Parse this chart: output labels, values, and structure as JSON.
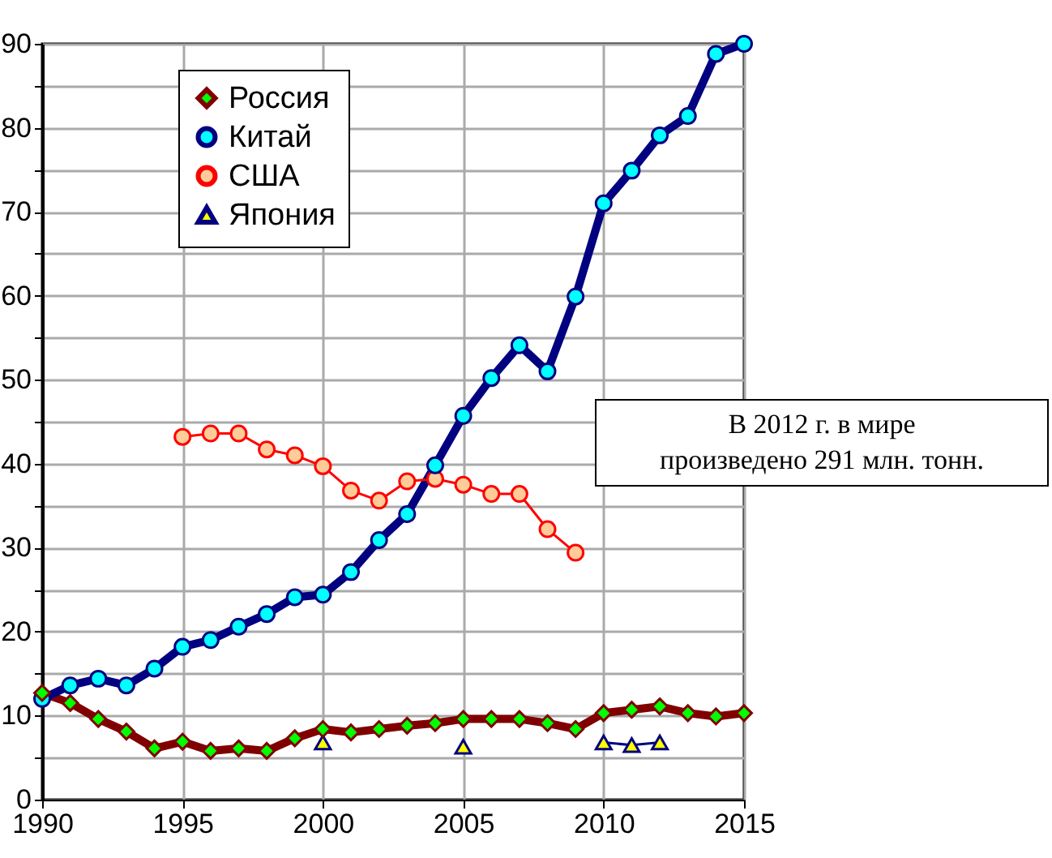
{
  "chart_data": {
    "type": "line",
    "x": [
      1990,
      1991,
      1992,
      1993,
      1994,
      1995,
      1996,
      1997,
      1998,
      1999,
      2000,
      2001,
      2002,
      2003,
      2004,
      2005,
      2006,
      2007,
      2008,
      2009,
      2010,
      2011,
      2012,
      2013,
      2014,
      2015
    ],
    "series": [
      {
        "name": "Россия",
        "color": "#800000",
        "marker": "diamond",
        "values": [
          12.7,
          11.5,
          9.6,
          8.1,
          6.1,
          6.9,
          5.8,
          6.1,
          5.8,
          7.3,
          8.4,
          8.0,
          8.4,
          8.8,
          9.1,
          9.6,
          9.6,
          9.6,
          9.1,
          8.4,
          10.3,
          10.7,
          11.1,
          10.3,
          9.9,
          10.3
        ]
      },
      {
        "name": "Китай",
        "color": "#000080",
        "marker": "circle",
        "values": [
          12.0,
          13.6,
          14.4,
          13.6,
          15.6,
          18.2,
          19.0,
          20.6,
          22.1,
          24.1,
          24.4,
          27.1,
          30.9,
          34.0,
          39.8,
          45.7,
          50.2,
          54.1,
          51.0,
          59.9,
          71.0,
          74.9,
          79.1,
          81.4,
          88.8,
          90.0
        ]
      },
      {
        "name": "США",
        "color": "#ff0000",
        "marker": "circle",
        "values": [
          null,
          null,
          null,
          null,
          null,
          43.2,
          43.6,
          43.6,
          41.7,
          41.0,
          39.7,
          36.8,
          35.6,
          37.9,
          38.2,
          37.5,
          36.4,
          36.4,
          32.2,
          29.4,
          null,
          null,
          null,
          null,
          null,
          null
        ]
      },
      {
        "name": "Япония",
        "color": "#000080",
        "marker": "triangle",
        "values": [
          null,
          null,
          null,
          null,
          null,
          null,
          null,
          null,
          null,
          null,
          6.8,
          null,
          null,
          null,
          null,
          6.3,
          null,
          null,
          null,
          null,
          6.8,
          6.5,
          6.8,
          null,
          null,
          null
        ]
      }
    ],
    "xlim": [
      1990,
      2015
    ],
    "xticks": [
      1990,
      1995,
      2000,
      2005,
      2010,
      2015
    ],
    "ylim": [
      0,
      90
    ],
    "yticks": [
      0,
      {
        "value": 5,
        "label": null
      },
      10,
      {
        "value": 15,
        "label": null
      },
      20,
      {
        "value": 25,
        "label": null
      },
      30,
      {
        "value": 35,
        "label": null
      },
      40,
      {
        "value": 45,
        "label": null
      },
      50,
      {
        "value": 55,
        "label": null
      },
      60,
      {
        "value": 65,
        "label": null
      },
      70,
      {
        "value": 75,
        "label": null
      },
      80,
      {
        "value": 85,
        "label": null
      },
      90
    ],
    "grid": true,
    "legend": "top left",
    "annotations": [
      "В 2012 г. в мире произведено 291 млн. тонн."
    ]
  }
}
